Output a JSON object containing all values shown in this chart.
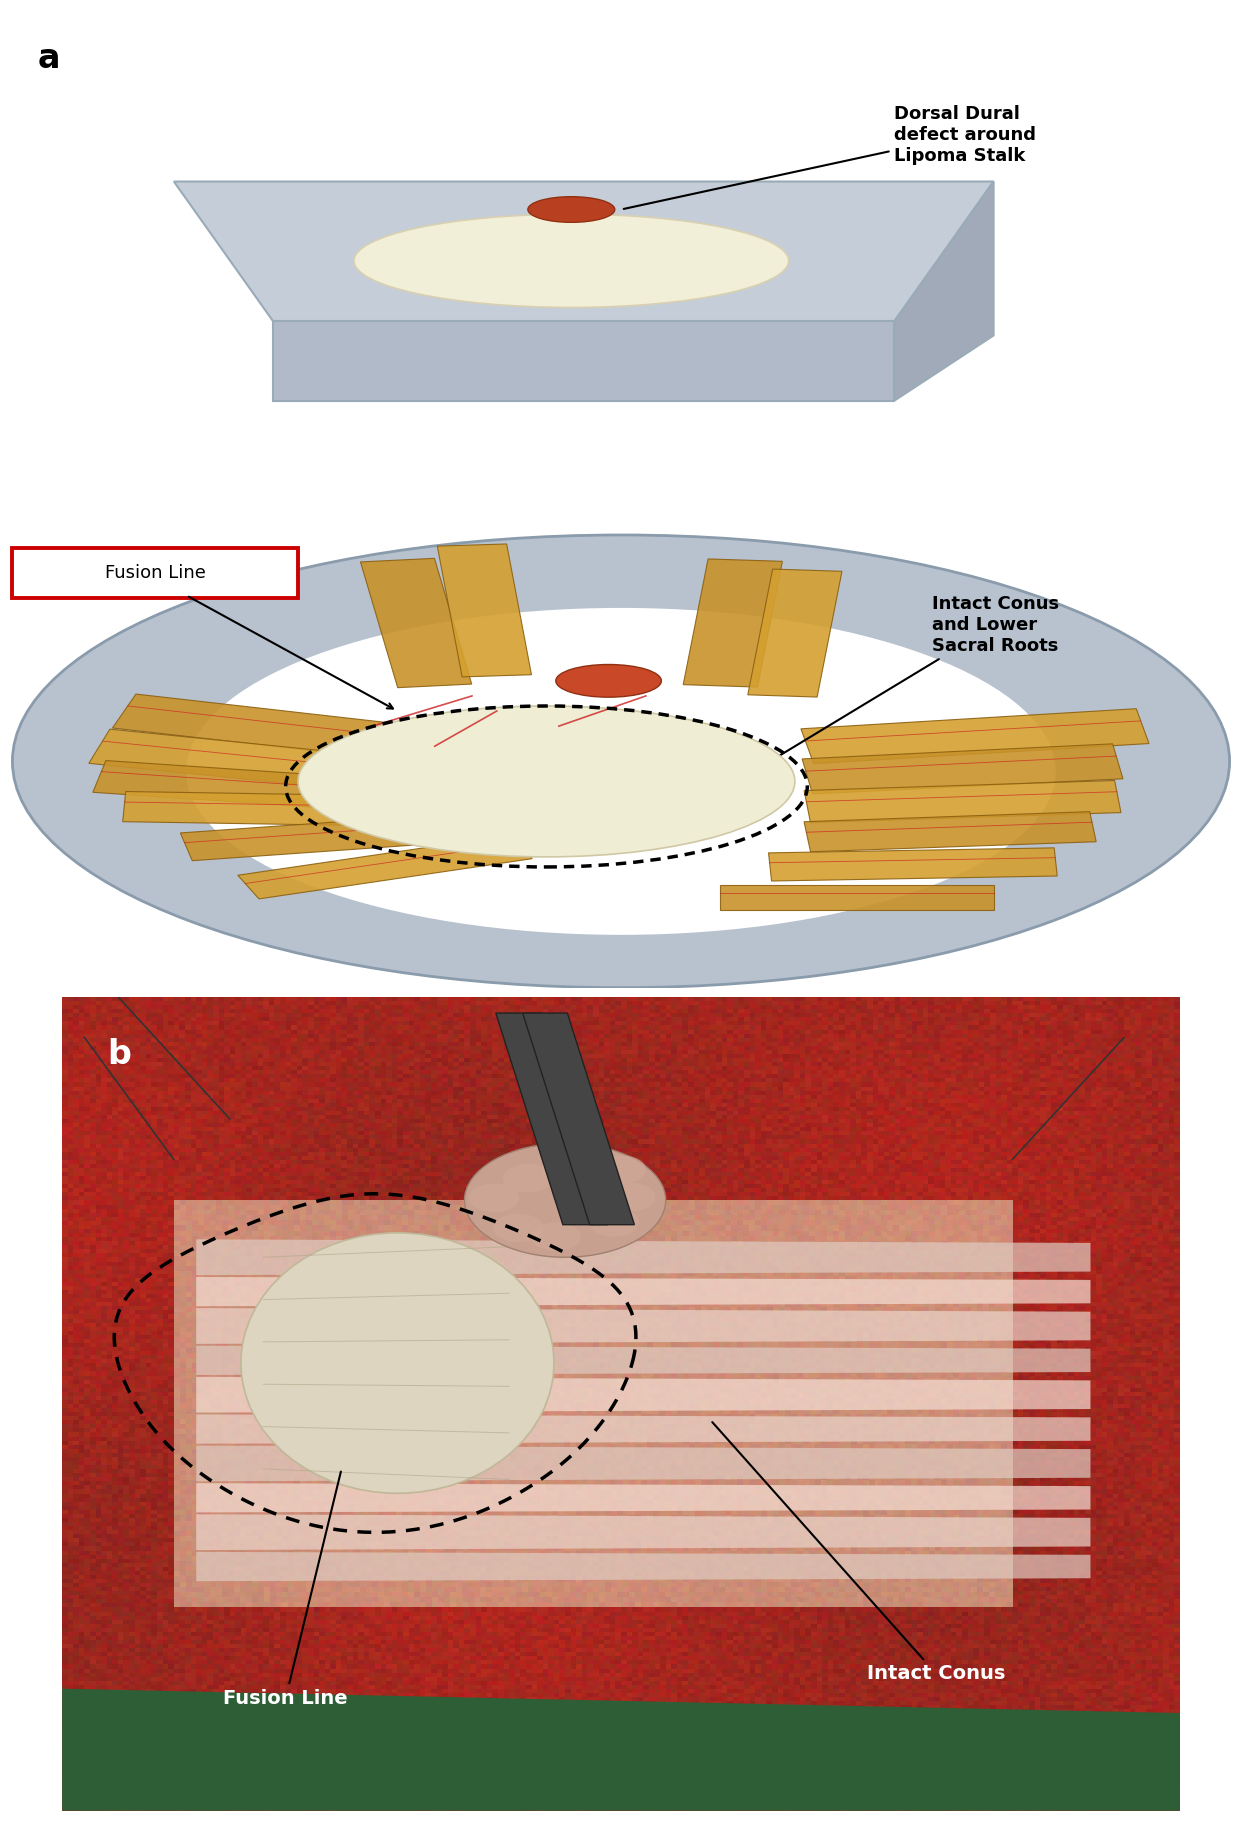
{
  "figure_width": 12.42,
  "figure_height": 18.29,
  "dpi": 100,
  "background_color": "#ffffff",
  "panel_a_label": "a",
  "panel_b_label": "b",
  "label_fontsize": 24,
  "annotation_fontsize": 13,
  "photo_annotation_fontsize": 14,
  "text_top_right": "Dorsal Dural\ndefect around\nLipoma Stalk",
  "text_fusion_line_box": "Fusion Line",
  "text_middle_right": "Intact Conus\nand Lower\nSacral Roots",
  "text_b_fusion": "Fusion Line",
  "text_b_conus": "Intact Conus",
  "fusion_box_edge_color": "#cc0000",
  "tissue_color": "#b8bfcc",
  "tissue_edge_color": "#8899aa",
  "dura_color": "#f5f0dc",
  "nerve_color_1": "#c8922a",
  "nerve_color_2": "#d4a030",
  "nerve_edge_color": "#8b6010",
  "lipoma_color_light": "#e8c040",
  "lipoma_color_mid": "#d4960c",
  "lipoma_color_dark": "#b87008",
  "lipoma_lobe_color": "#c07818",
  "stalk_color": "#b04020",
  "stalk_edge_color": "#883010",
  "dotted_line_color": "#111111",
  "red_vessel_color": "#cc2020",
  "photo_bg_color": "#8b2020",
  "photo_tissue_light": "#c87060",
  "photo_cord_color": "#e8ddd0",
  "photo_conus_color": "#ddd0b8",
  "green_cloth_color": "#2e5e35",
  "white_text_color": "#ffffff",
  "black_line_color": "#000000"
}
